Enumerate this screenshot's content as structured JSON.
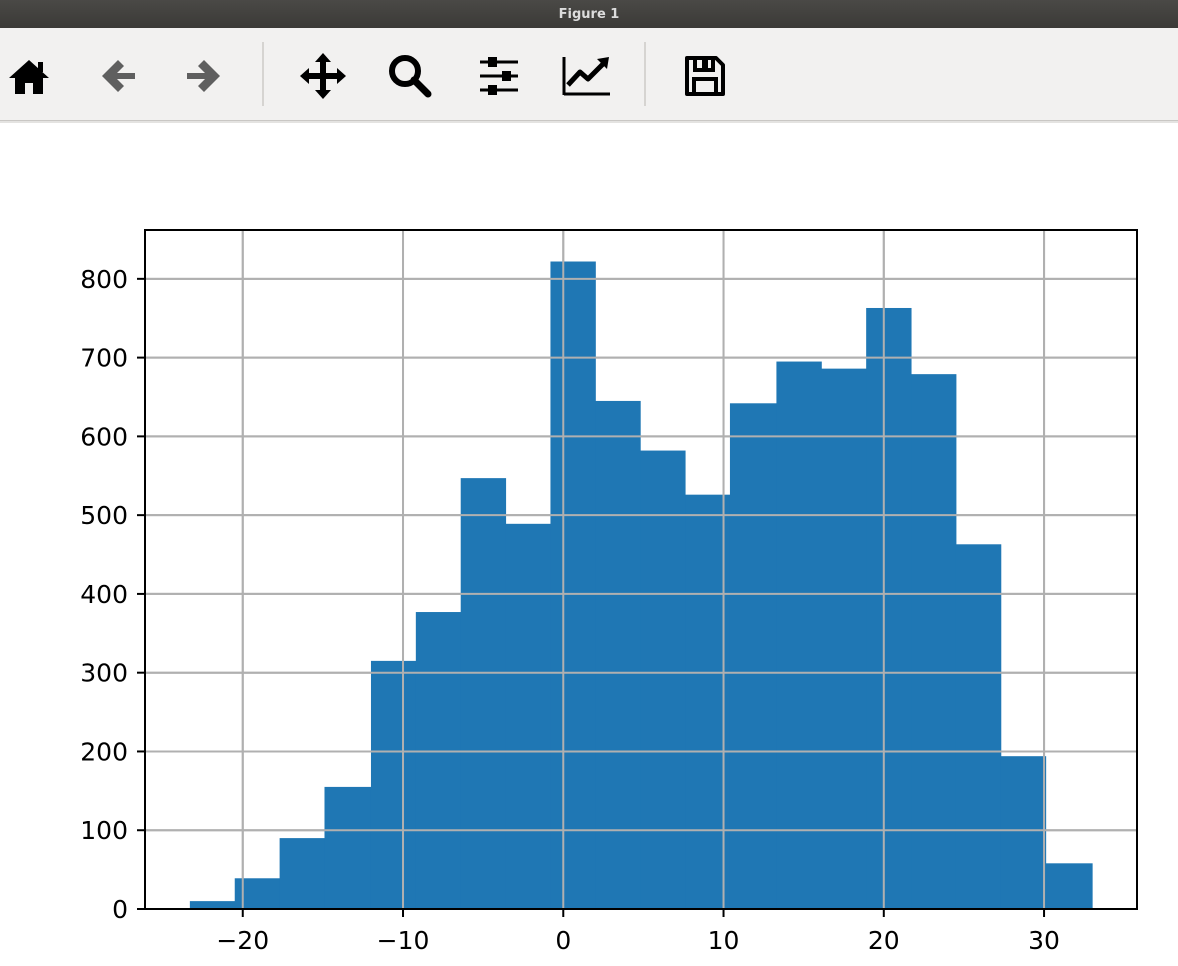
{
  "window": {
    "title": "Figure 1"
  },
  "toolbar": {
    "buttons": [
      {
        "name": "home",
        "icon": "home-icon"
      },
      {
        "name": "back",
        "icon": "arrow-left-icon"
      },
      {
        "name": "forward",
        "icon": "arrow-right-icon"
      },
      {
        "name": "pan",
        "icon": "move-icon"
      },
      {
        "name": "zoom",
        "icon": "zoom-icon"
      },
      {
        "name": "subplots",
        "icon": "sliders-icon"
      },
      {
        "name": "customize",
        "icon": "line-chart-icon"
      },
      {
        "name": "save",
        "icon": "floppy-disk-icon"
      }
    ]
  },
  "chart_data": {
    "type": "bar",
    "title": "",
    "xlabel": "",
    "ylabel": "",
    "bar_color": "#1f77b4",
    "grid": true,
    "xlim": [
      -26.1,
      35.8
    ],
    "ylim": [
      0,
      862
    ],
    "xticks": [
      -20,
      -10,
      0,
      10,
      20,
      30
    ],
    "xtick_labels": [
      "−20",
      "−10",
      "0",
      "10",
      "20",
      "30"
    ],
    "yticks": [
      0,
      100,
      200,
      300,
      400,
      500,
      600,
      700,
      800
    ],
    "ytick_labels": [
      "0",
      "100",
      "200",
      "300",
      "400",
      "500",
      "600",
      "700",
      "800"
    ],
    "bins": [
      {
        "x0": -23.3,
        "x1": -20.5,
        "count": 10
      },
      {
        "x0": -20.5,
        "x1": -17.7,
        "count": 39
      },
      {
        "x0": -17.7,
        "x1": -14.9,
        "count": 90
      },
      {
        "x0": -14.9,
        "x1": -12.0,
        "count": 155
      },
      {
        "x0": -12.0,
        "x1": -9.2,
        "count": 315
      },
      {
        "x0": -9.2,
        "x1": -6.4,
        "count": 377
      },
      {
        "x0": -6.4,
        "x1": -3.6,
        "count": 547
      },
      {
        "x0": -3.6,
        "x1": -0.8,
        "count": 489
      },
      {
        "x0": -0.8,
        "x1": 2.0,
        "count": 822
      },
      {
        "x0": 2.0,
        "x1": 4.8,
        "count": 645
      },
      {
        "x0": 4.8,
        "x1": 7.6,
        "count": 582
      },
      {
        "x0": 7.6,
        "x1": 10.4,
        "count": 526
      },
      {
        "x0": 10.4,
        "x1": 13.3,
        "count": 642
      },
      {
        "x0": 13.3,
        "x1": 16.1,
        "count": 695
      },
      {
        "x0": 16.1,
        "x1": 18.9,
        "count": 686
      },
      {
        "x0": 18.9,
        "x1": 21.7,
        "count": 763
      },
      {
        "x0": 21.7,
        "x1": 24.5,
        "count": 679
      },
      {
        "x0": 24.5,
        "x1": 27.3,
        "count": 463
      },
      {
        "x0": 27.3,
        "x1": 30.1,
        "count": 194
      },
      {
        "x0": 30.1,
        "x1": 33.0,
        "count": 58
      }
    ]
  }
}
